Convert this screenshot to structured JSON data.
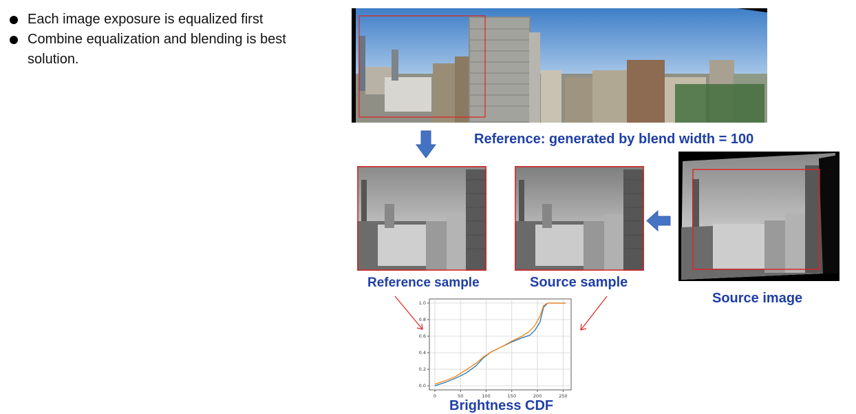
{
  "bullets": [
    "Each image exposure is equalized first",
    "Combine equalization and blending is best solution."
  ],
  "labels": {
    "reference_caption": "Reference: generated by blend width = 100",
    "reference_sample": "Reference sample",
    "source_sample": "Source sample",
    "source_image": "Source image",
    "brightness_cdf": "Brightness CDF"
  },
  "colors": {
    "caption": "#1f3fa6",
    "arrow_blue": "#4472c4",
    "red_frame": "#e02020",
    "series_blue": "#1f77b4",
    "series_orange": "#ff7f0e"
  },
  "chart_data": {
    "type": "line",
    "title": "",
    "xlabel": "",
    "ylabel": "",
    "xlim": [
      0,
      255
    ],
    "ylim": [
      0,
      1.0
    ],
    "xticks": [
      0,
      50,
      100,
      150,
      200,
      250
    ],
    "yticks": [
      0.0,
      0.2,
      0.4,
      0.6,
      0.8,
      1.0
    ],
    "grid": true,
    "series": [
      {
        "color": "#1f77b4",
        "x": [
          0,
          20,
          40,
          60,
          80,
          95,
          110,
          130,
          150,
          170,
          185,
          195,
          205,
          212,
          220,
          255
        ],
        "y": [
          0.0,
          0.04,
          0.09,
          0.15,
          0.24,
          0.34,
          0.41,
          0.47,
          0.53,
          0.58,
          0.61,
          0.67,
          0.77,
          0.95,
          1.0,
          1.0
        ]
      },
      {
        "color": "#ff7f0e",
        "x": [
          0,
          20,
          40,
          60,
          80,
          95,
          110,
          130,
          150,
          170,
          185,
          195,
          205,
          212,
          220,
          255
        ],
        "y": [
          0.02,
          0.06,
          0.11,
          0.19,
          0.27,
          0.35,
          0.41,
          0.47,
          0.54,
          0.6,
          0.66,
          0.73,
          0.84,
          0.97,
          1.0,
          1.0
        ]
      }
    ]
  }
}
